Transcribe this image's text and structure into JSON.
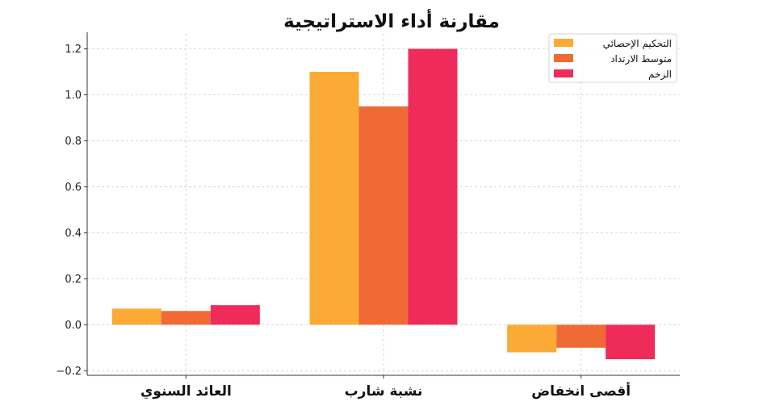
{
  "chart_data": {
    "type": "bar",
    "title": "مقارنة أداء الاستراتيجية",
    "xlabel": "",
    "ylabel": "",
    "categories": [
      "العائد السنوي",
      "نشبة شارب",
      "أقصى انخفاض"
    ],
    "series": [
      {
        "name": "التحكيم الإحصائي",
        "values": [
          0.07,
          1.1,
          -0.12
        ],
        "color": "#FBAB35"
      },
      {
        "name": "متوسط الارتداد",
        "values": [
          0.06,
          0.95,
          -0.1
        ],
        "color": "#F06A36"
      },
      {
        "name": "الزخم",
        "values": [
          0.085,
          1.2,
          -0.15
        ],
        "color": "#EF2B5A"
      }
    ],
    "ylim": [
      -0.22,
      1.265
    ],
    "yticks": [
      -0.2,
      0.0,
      0.2,
      0.4,
      0.6,
      0.8,
      1.0,
      1.2
    ],
    "ytick_labels": [
      "−0.2",
      "0.0",
      "0.2",
      "0.4",
      "0.6",
      "0.8",
      "1.0",
      "1.2"
    ],
    "grid": true,
    "legend_position": "top-right"
  }
}
